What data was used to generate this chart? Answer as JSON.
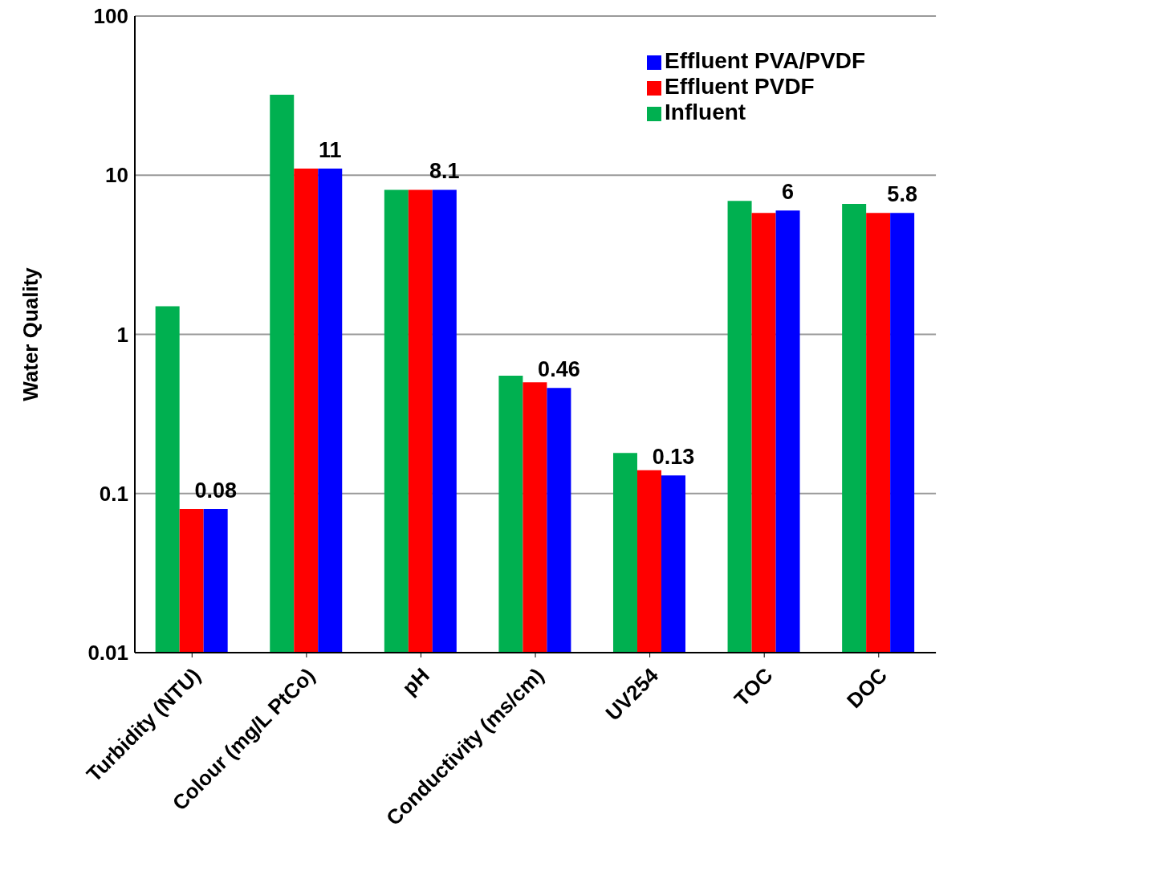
{
  "chart_data": {
    "type": "bar",
    "ylabel": "Water Quality",
    "categories": [
      "Turbidity (NTU)",
      "Colour (mg/L PtCo)",
      "pH",
      "Conductivity (ms/cm)",
      "UV254",
      "TOC",
      "DOC"
    ],
    "series": [
      {
        "name": "Influent",
        "color": "#00b050",
        "values": [
          1.5,
          32,
          8.1,
          0.55,
          0.18,
          6.9,
          6.6
        ]
      },
      {
        "name": "Effluent  PVDF",
        "color": "#ff0000",
        "values": [
          0.08,
          11,
          8.1,
          0.5,
          0.14,
          5.8,
          5.8
        ]
      },
      {
        "name": "Effluent  PVA/PVDF",
        "color": "#0000ff",
        "values": [
          0.08,
          11,
          8.1,
          0.46,
          0.13,
          6,
          5.8
        ],
        "value_labels": [
          "0.08",
          "11",
          "8.1",
          "0.46",
          "0.13",
          "6",
          "5.8"
        ]
      }
    ],
    "log": true,
    "ylim": [
      0.01,
      100
    ],
    "yticks": [
      0.01,
      0.1,
      1,
      10,
      100
    ],
    "grid": "y",
    "legend": "top right"
  }
}
